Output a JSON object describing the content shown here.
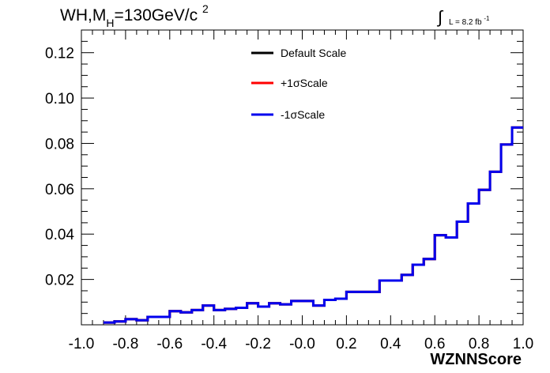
{
  "title": {
    "base": "WH,M",
    "sub": "H",
    "middle": "=130GeV/c",
    "sup": "2"
  },
  "lumi": {
    "integral": "∫",
    "text": "L = 8.2 fb",
    "sup": "-1"
  },
  "chart_data": {
    "type": "line",
    "style": "step-histogram",
    "xlabel": "WZNNScore",
    "ylabel": "",
    "xlim": [
      -1.0,
      1.0
    ],
    "ylim": [
      0.0,
      0.13
    ],
    "bin_width": 0.05,
    "x_tick_labels": [
      "-1.0",
      "-0.8",
      "-0.6",
      "-0.4",
      "-0.2",
      "-0.0",
      "0.2",
      "0.4",
      "0.6",
      "0.8",
      "1.0"
    ],
    "y_tick_labels": [
      "0.02",
      "0.04",
      "0.06",
      "0.08",
      "0.10",
      "0.12"
    ],
    "legend_position": "top-center",
    "series": [
      {
        "name": "Default Scale",
        "color": "#000000",
        "values": [
          0.001,
          0.0015,
          0.0025,
          0.002,
          0.0035,
          0.0035,
          0.006,
          0.0055,
          0.0065,
          0.0085,
          0.0065,
          0.007,
          0.0075,
          0.0095,
          0.008,
          0.0095,
          0.009,
          0.0105,
          0.0105,
          0.0085,
          0.011,
          0.0115,
          0.0145,
          0.0145,
          0.0145,
          0.0195,
          0.0195,
          0.022,
          0.0265,
          0.029,
          0.0395,
          0.0385,
          0.0455,
          0.0535,
          0.0595,
          0.0675,
          0.0795,
          0.087
        ]
      },
      {
        "name": "+1σScale",
        "color": "#ff0000",
        "values": [
          0.001,
          0.0015,
          0.0025,
          0.002,
          0.0035,
          0.0035,
          0.006,
          0.0055,
          0.0065,
          0.0085,
          0.0065,
          0.007,
          0.0075,
          0.0095,
          0.008,
          0.0095,
          0.009,
          0.0105,
          0.0105,
          0.0085,
          0.011,
          0.0115,
          0.0145,
          0.0145,
          0.0145,
          0.0195,
          0.0195,
          0.022,
          0.0265,
          0.029,
          0.0395,
          0.0385,
          0.0455,
          0.0535,
          0.0595,
          0.0675,
          0.0795,
          0.087
        ]
      },
      {
        "name": "-1σScale",
        "color": "#0000ee",
        "values": [
          0.001,
          0.0015,
          0.0025,
          0.002,
          0.0035,
          0.0035,
          0.006,
          0.0055,
          0.0065,
          0.0085,
          0.0065,
          0.007,
          0.0075,
          0.0095,
          0.008,
          0.0095,
          0.009,
          0.0105,
          0.0105,
          0.0085,
          0.011,
          0.0115,
          0.0145,
          0.0145,
          0.0145,
          0.0195,
          0.0195,
          0.022,
          0.0265,
          0.029,
          0.0395,
          0.0385,
          0.0455,
          0.0535,
          0.0595,
          0.0675,
          0.0795,
          0.087
        ]
      }
    ]
  }
}
